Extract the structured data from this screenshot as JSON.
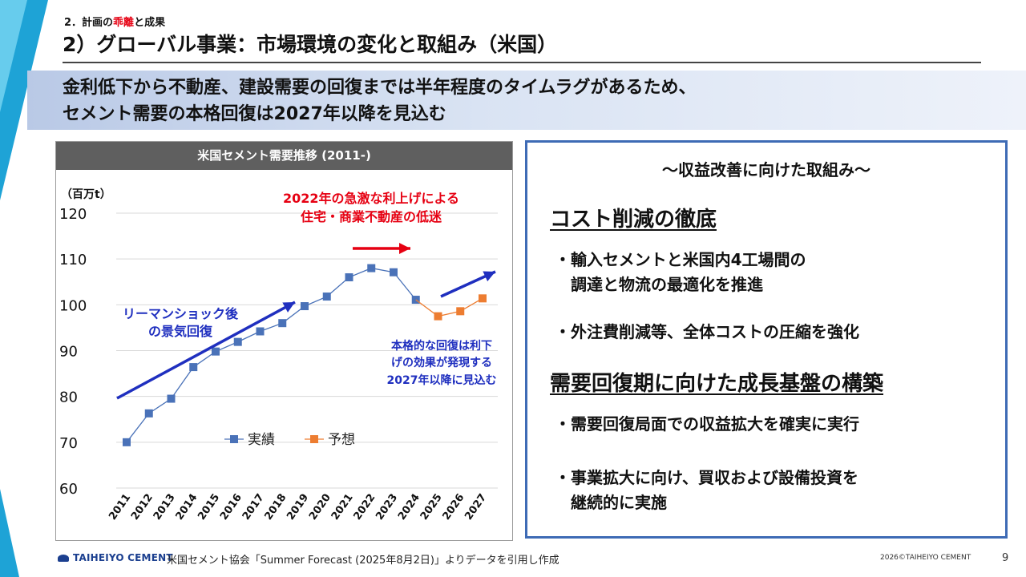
{
  "header": {
    "section_prefix": "2．計画の",
    "section_highlight": "乖離",
    "section_suffix": "と成果",
    "title": "2）グローバル事業：市場環境の変化と取組み（米国）"
  },
  "banner": {
    "line1": "金利低下から不動産、建設需要の回復までは半年程度のタイムラグがあるため、",
    "line2": "セメント需要の本格回復は2027年以降を見込む"
  },
  "chart_data": {
    "type": "line",
    "title": "米国セメント需要推移 (2011-)",
    "ylabel": "（百万t）",
    "xlabel": "",
    "ylim": [
      60,
      120
    ],
    "yticks": [
      60,
      70,
      80,
      90,
      100,
      110,
      120
    ],
    "categories": [
      "2011",
      "2012",
      "2013",
      "2014",
      "2015",
      "2016",
      "2017",
      "2018",
      "2019",
      "2020",
      "2021",
      "2022",
      "2023",
      "2024",
      "2025",
      "2026",
      "2027"
    ],
    "series": [
      {
        "name": "実績",
        "color": "#4a72b8",
        "values": [
          70.0,
          76.3,
          79.5,
          86.4,
          89.8,
          91.9,
          94.2,
          96.0,
          99.7,
          101.8,
          106.0,
          108.0,
          107.1,
          101.1,
          null,
          null,
          null
        ]
      },
      {
        "name": "予想",
        "color": "#ed7d31",
        "values": [
          null,
          null,
          null,
          null,
          null,
          null,
          null,
          null,
          null,
          null,
          null,
          null,
          null,
          101.1,
          97.5,
          98.6,
          101.4
        ]
      }
    ],
    "legend": [
      "実績",
      "予想"
    ],
    "legend_position": "bottom-center",
    "annotations": {
      "left_label": [
        "リーマンショック後",
        "の景気回復"
      ],
      "top_label": [
        "2022年の急激な利上げによる",
        "住宅・商業不動産の低迷"
      ],
      "right_label": [
        "本格的な回復は利下",
        "げの効果が発現する",
        "2027年以降に見込む"
      ]
    },
    "colors": {
      "annotation_blue": "#1f2fbf",
      "annotation_red": "#e60012"
    }
  },
  "right_panel": {
    "title": "～収益改善に向けた取組み～",
    "heading1": "コスト削減の徹底",
    "bullet1": "・輸入セメントと米国内4工場間の\n　調達と物流の最適化を推進",
    "bullet2": "・外注費削減等、全体コストの圧縮を強化",
    "heading2": "需要回復期に向けた成長基盤の構築",
    "bullet3": "・需要回復局面での収益拡大を確実に実行",
    "bullet4": "・事業拡大に向け、買収および設備投資を\n　継続的に実施"
  },
  "footer": {
    "logo": "TAIHEIYO CEMENT",
    "source": "米国セメント協会「Summer Forecast (2025年8月2日)」よりデータを引用し作成",
    "copyright": "2026©TAIHEIYO CEMENT",
    "page_number": "9"
  }
}
